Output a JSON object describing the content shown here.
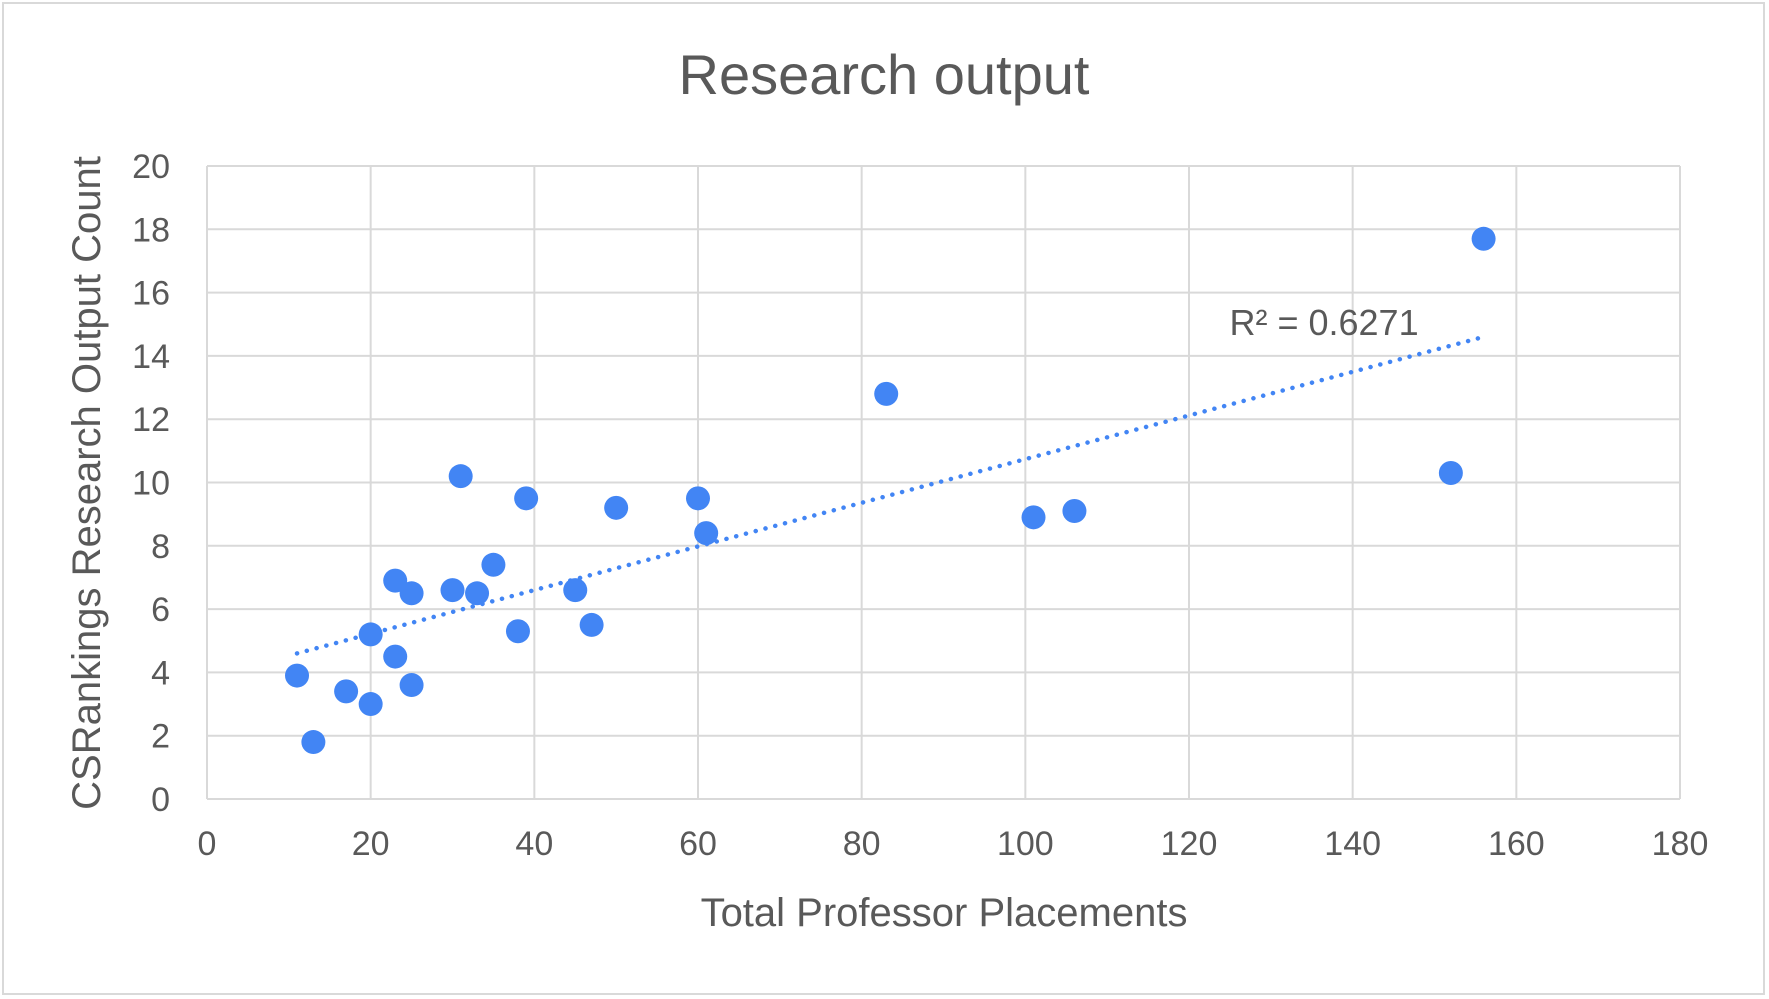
{
  "chart_data": {
    "type": "scatter",
    "title": "Research output",
    "xlabel": "Total Professor Placements",
    "ylabel": "CSRankings Research Output Count",
    "xlim": [
      0,
      180
    ],
    "ylim": [
      0,
      20
    ],
    "x_ticks": [
      0,
      20,
      40,
      60,
      80,
      100,
      120,
      140,
      160,
      180
    ],
    "y_ticks": [
      0,
      2,
      4,
      6,
      8,
      10,
      12,
      14,
      16,
      18,
      20
    ],
    "grid": true,
    "legend": "none",
    "marker_color": "#4285f4",
    "trendline": {
      "type": "linear",
      "style": "dotted",
      "color": "#4285f4",
      "x_range": [
        11,
        156
      ],
      "y_range": [
        4.6,
        14.6
      ],
      "annotation": "R² = 0.6271"
    },
    "points": [
      {
        "x": 11,
        "y": 3.9
      },
      {
        "x": 13,
        "y": 1.8
      },
      {
        "x": 17,
        "y": 3.4
      },
      {
        "x": 20,
        "y": 5.2
      },
      {
        "x": 20,
        "y": 3.0
      },
      {
        "x": 23,
        "y": 6.9
      },
      {
        "x": 23,
        "y": 4.5
      },
      {
        "x": 25,
        "y": 6.5
      },
      {
        "x": 25,
        "y": 3.6
      },
      {
        "x": 30,
        "y": 6.6
      },
      {
        "x": 31,
        "y": 10.2
      },
      {
        "x": 33,
        "y": 6.5
      },
      {
        "x": 35,
        "y": 7.4
      },
      {
        "x": 38,
        "y": 5.3
      },
      {
        "x": 39,
        "y": 9.5
      },
      {
        "x": 45,
        "y": 6.6
      },
      {
        "x": 47,
        "y": 5.5
      },
      {
        "x": 50,
        "y": 9.2
      },
      {
        "x": 60,
        "y": 9.5
      },
      {
        "x": 61,
        "y": 8.4
      },
      {
        "x": 83,
        "y": 12.8
      },
      {
        "x": 101,
        "y": 8.9
      },
      {
        "x": 106,
        "y": 9.1
      },
      {
        "x": 152,
        "y": 10.3
      },
      {
        "x": 156,
        "y": 17.7
      }
    ]
  }
}
